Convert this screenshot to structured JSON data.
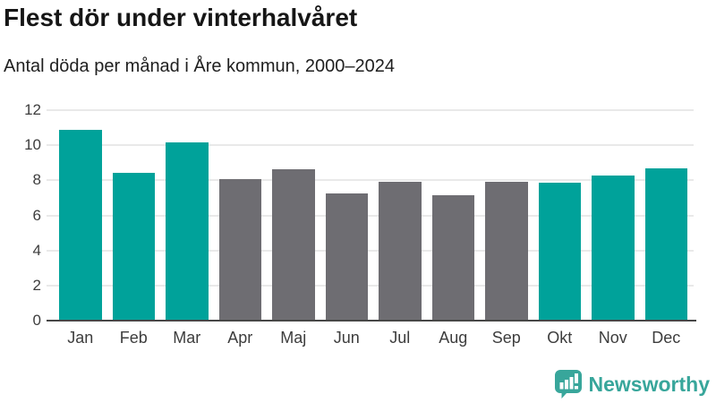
{
  "header": {
    "title": "Flest dör under vinterhalvåret",
    "subtitle": "Antal döda per månad i Åre kommun, 2000–2024"
  },
  "colors": {
    "highlight": "#00a29a",
    "muted": "#6e6d72",
    "grid": "#e9e9e9",
    "axis": "#474747",
    "tick_text": "#3d3d3d",
    "logo": "#38a69b"
  },
  "chart_data": {
    "type": "bar",
    "title": "Flest dör under vinterhalvåret",
    "subtitle": "Antal döda per månad i Åre kommun, 2000–2024",
    "categories": [
      "Jan",
      "Feb",
      "Mar",
      "Apr",
      "Maj",
      "Jun",
      "Jul",
      "Aug",
      "Sep",
      "Okt",
      "Nov",
      "Dec"
    ],
    "values": [
      10.9,
      8.45,
      10.15,
      8.05,
      8.65,
      7.25,
      7.9,
      7.15,
      7.9,
      7.85,
      8.25,
      8.7
    ],
    "highlighted": [
      true,
      true,
      true,
      false,
      false,
      false,
      false,
      false,
      false,
      true,
      true,
      true
    ],
    "highlight_meaning": "winter half-year months (teal), summer months gray",
    "xlabel": "",
    "ylabel": "",
    "ylim": [
      0,
      12
    ],
    "yticks": [
      0,
      2,
      4,
      6,
      8,
      10,
      12
    ],
    "grid": "horizontal",
    "legend": "none"
  },
  "footer": {
    "brand": "Newsworthy",
    "logo_icon": "bar-chart-speech-bubble-icon"
  }
}
